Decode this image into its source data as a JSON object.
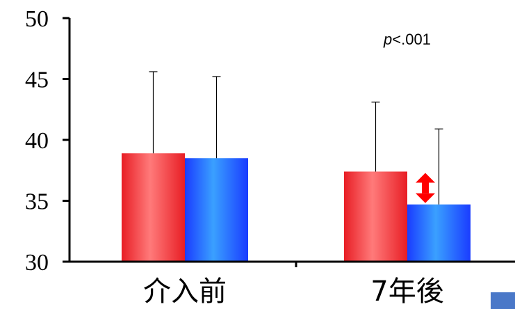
{
  "chart_data": {
    "type": "bar",
    "categories": [
      "介入前",
      "7年後"
    ],
    "series": [
      {
        "values": [
          38.9,
          37.4
        ],
        "errors": [
          6.7,
          5.7
        ],
        "color": "#ff2a2a"
      },
      {
        "values": [
          38.5,
          34.7
        ],
        "errors": [
          6.7,
          6.2
        ],
        "color": "#1e6bff"
      }
    ],
    "ylim": [
      30,
      50
    ],
    "yticks": [
      30,
      35,
      40,
      45,
      50
    ],
    "annotation": {
      "p_symbol": "p",
      "p_rest": "<.001"
    },
    "grid": false,
    "legend": "none",
    "difference_marker_color": "#ff0000"
  }
}
